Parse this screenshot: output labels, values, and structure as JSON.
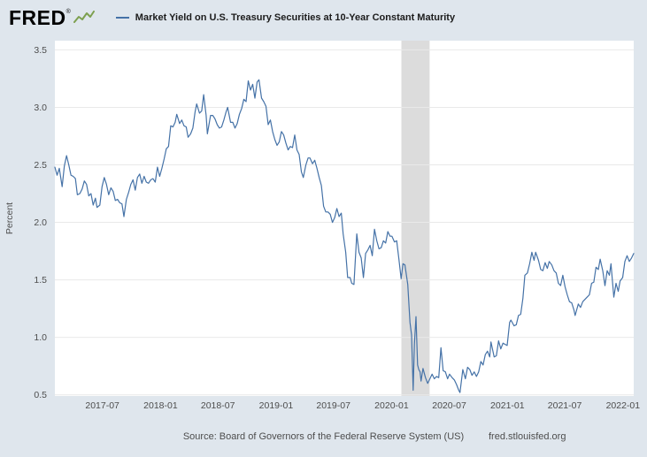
{
  "header": {
    "logo_text": "FRED",
    "logo_registered": "®",
    "legend": {
      "series_label": "Market Yield on U.S. Treasury Securities at 10-Year Constant Maturity"
    }
  },
  "footer": {
    "source_text": "Source: Board of Governors of the Federal Reserve System (US)",
    "site_text": "fred.stlouisfed.org"
  },
  "chart_data": {
    "type": "line",
    "title": "Market Yield on U.S. Treasury Securities at 10-Year Constant Maturity",
    "xlabel": "",
    "ylabel": "Percent",
    "ylim": [
      0.49,
      3.58
    ],
    "yticks": [
      0.5,
      1.0,
      1.5,
      2.0,
      2.5,
      3.0,
      3.5
    ],
    "ytick_labels": [
      "0.5",
      "1.0",
      "1.5",
      "2.0",
      "2.5",
      "3.0",
      "3.5"
    ],
    "xticks": [
      "2017-07",
      "2018-01",
      "2018-07",
      "2019-01",
      "2019-07",
      "2020-01",
      "2020-07",
      "2021-01",
      "2021-07",
      "2022-01"
    ],
    "x_start": "2017-02-01",
    "x_end": "2022-02-04",
    "grid": true,
    "legend_position": "top-left",
    "colors": {
      "line": "#4572a7",
      "recession_band": "#dcdcdc",
      "grid": "#e9e9e9",
      "plot_bg": "#ffffff",
      "page_bg": "#dfe6ed",
      "tick_text": "#4d4d4d"
    },
    "recession_bands": [
      {
        "start": "2020-02-01",
        "end": "2020-04-30"
      }
    ],
    "series": [
      {
        "name": "Market Yield on U.S. Treasury Securities at 10-Year Constant Maturity",
        "color": "#4572a7",
        "units": "Percent",
        "points": [
          [
            "2017-02-01",
            2.48
          ],
          [
            "2017-02-08",
            2.41
          ],
          [
            "2017-02-15",
            2.47
          ],
          [
            "2017-02-24",
            2.31
          ],
          [
            "2017-03-03",
            2.49
          ],
          [
            "2017-03-10",
            2.58
          ],
          [
            "2017-03-17",
            2.5
          ],
          [
            "2017-03-24",
            2.41
          ],
          [
            "2017-03-31",
            2.4
          ],
          [
            "2017-04-07",
            2.38
          ],
          [
            "2017-04-13",
            2.24
          ],
          [
            "2017-04-21",
            2.25
          ],
          [
            "2017-04-28",
            2.29
          ],
          [
            "2017-05-05",
            2.36
          ],
          [
            "2017-05-12",
            2.33
          ],
          [
            "2017-05-19",
            2.23
          ],
          [
            "2017-05-26",
            2.25
          ],
          [
            "2017-06-02",
            2.15
          ],
          [
            "2017-06-09",
            2.21
          ],
          [
            "2017-06-14",
            2.13
          ],
          [
            "2017-06-23",
            2.15
          ],
          [
            "2017-06-30",
            2.31
          ],
          [
            "2017-07-07",
            2.39
          ],
          [
            "2017-07-14",
            2.33
          ],
          [
            "2017-07-21",
            2.24
          ],
          [
            "2017-07-28",
            2.3
          ],
          [
            "2017-08-04",
            2.27
          ],
          [
            "2017-08-11",
            2.19
          ],
          [
            "2017-08-18",
            2.2
          ],
          [
            "2017-08-25",
            2.17
          ],
          [
            "2017-09-01",
            2.16
          ],
          [
            "2017-09-07",
            2.05
          ],
          [
            "2017-09-15",
            2.2
          ],
          [
            "2017-09-22",
            2.26
          ],
          [
            "2017-09-29",
            2.33
          ],
          [
            "2017-10-06",
            2.37
          ],
          [
            "2017-10-13",
            2.28
          ],
          [
            "2017-10-20",
            2.39
          ],
          [
            "2017-10-27",
            2.42
          ],
          [
            "2017-11-03",
            2.34
          ],
          [
            "2017-11-10",
            2.4
          ],
          [
            "2017-11-17",
            2.35
          ],
          [
            "2017-11-24",
            2.34
          ],
          [
            "2017-12-01",
            2.37
          ],
          [
            "2017-12-08",
            2.38
          ],
          [
            "2017-12-15",
            2.35
          ],
          [
            "2017-12-22",
            2.48
          ],
          [
            "2017-12-29",
            2.4
          ],
          [
            "2018-01-05",
            2.47
          ],
          [
            "2018-01-12",
            2.55
          ],
          [
            "2018-01-19",
            2.64
          ],
          [
            "2018-01-26",
            2.66
          ],
          [
            "2018-02-02",
            2.84
          ],
          [
            "2018-02-09",
            2.83
          ],
          [
            "2018-02-16",
            2.87
          ],
          [
            "2018-02-21",
            2.94
          ],
          [
            "2018-03-02",
            2.86
          ],
          [
            "2018-03-09",
            2.89
          ],
          [
            "2018-03-16",
            2.84
          ],
          [
            "2018-03-23",
            2.83
          ],
          [
            "2018-03-29",
            2.74
          ],
          [
            "2018-04-06",
            2.77
          ],
          [
            "2018-04-13",
            2.82
          ],
          [
            "2018-04-20",
            2.96
          ],
          [
            "2018-04-25",
            3.03
          ],
          [
            "2018-05-04",
            2.95
          ],
          [
            "2018-05-11",
            2.97
          ],
          [
            "2018-05-17",
            3.11
          ],
          [
            "2018-05-25",
            2.93
          ],
          [
            "2018-05-29",
            2.77
          ],
          [
            "2018-06-08",
            2.93
          ],
          [
            "2018-06-15",
            2.93
          ],
          [
            "2018-06-22",
            2.9
          ],
          [
            "2018-06-29",
            2.85
          ],
          [
            "2018-07-06",
            2.82
          ],
          [
            "2018-07-13",
            2.83
          ],
          [
            "2018-07-20",
            2.89
          ],
          [
            "2018-07-27",
            2.96
          ],
          [
            "2018-08-01",
            3.0
          ],
          [
            "2018-08-10",
            2.87
          ],
          [
            "2018-08-17",
            2.87
          ],
          [
            "2018-08-24",
            2.82
          ],
          [
            "2018-08-31",
            2.86
          ],
          [
            "2018-09-07",
            2.94
          ],
          [
            "2018-09-14",
            2.99
          ],
          [
            "2018-09-21",
            3.07
          ],
          [
            "2018-09-28",
            3.05
          ],
          [
            "2018-10-05",
            3.23
          ],
          [
            "2018-10-12",
            3.15
          ],
          [
            "2018-10-19",
            3.2
          ],
          [
            "2018-10-26",
            3.08
          ],
          [
            "2018-11-02",
            3.22
          ],
          [
            "2018-11-08",
            3.24
          ],
          [
            "2018-11-16",
            3.08
          ],
          [
            "2018-11-23",
            3.05
          ],
          [
            "2018-11-30",
            3.01
          ],
          [
            "2018-12-07",
            2.85
          ],
          [
            "2018-12-14",
            2.89
          ],
          [
            "2018-12-21",
            2.79
          ],
          [
            "2018-12-28",
            2.72
          ],
          [
            "2019-01-04",
            2.67
          ],
          [
            "2019-01-11",
            2.7
          ],
          [
            "2019-01-18",
            2.79
          ],
          [
            "2019-01-25",
            2.76
          ],
          [
            "2019-02-01",
            2.69
          ],
          [
            "2019-02-08",
            2.63
          ],
          [
            "2019-02-15",
            2.66
          ],
          [
            "2019-02-22",
            2.65
          ],
          [
            "2019-03-01",
            2.76
          ],
          [
            "2019-03-08",
            2.63
          ],
          [
            "2019-03-15",
            2.59
          ],
          [
            "2019-03-22",
            2.44
          ],
          [
            "2019-03-28",
            2.39
          ],
          [
            "2019-04-05",
            2.5
          ],
          [
            "2019-04-12",
            2.56
          ],
          [
            "2019-04-18",
            2.56
          ],
          [
            "2019-04-26",
            2.51
          ],
          [
            "2019-05-03",
            2.54
          ],
          [
            "2019-05-10",
            2.47
          ],
          [
            "2019-05-17",
            2.39
          ],
          [
            "2019-05-24",
            2.32
          ],
          [
            "2019-05-31",
            2.14
          ],
          [
            "2019-06-07",
            2.09
          ],
          [
            "2019-06-14",
            2.09
          ],
          [
            "2019-06-21",
            2.07
          ],
          [
            "2019-06-28",
            2.0
          ],
          [
            "2019-07-05",
            2.04
          ],
          [
            "2019-07-12",
            2.12
          ],
          [
            "2019-07-19",
            2.05
          ],
          [
            "2019-07-26",
            2.08
          ],
          [
            "2019-08-01",
            1.9
          ],
          [
            "2019-08-09",
            1.74
          ],
          [
            "2019-08-15",
            1.52
          ],
          [
            "2019-08-23",
            1.52
          ],
          [
            "2019-08-28",
            1.47
          ],
          [
            "2019-09-04",
            1.46
          ],
          [
            "2019-09-13",
            1.9
          ],
          [
            "2019-09-20",
            1.74
          ],
          [
            "2019-09-27",
            1.69
          ],
          [
            "2019-10-04",
            1.52
          ],
          [
            "2019-10-11",
            1.73
          ],
          [
            "2019-10-18",
            1.76
          ],
          [
            "2019-10-25",
            1.8
          ],
          [
            "2019-11-01",
            1.71
          ],
          [
            "2019-11-08",
            1.94
          ],
          [
            "2019-11-15",
            1.84
          ],
          [
            "2019-11-22",
            1.77
          ],
          [
            "2019-11-29",
            1.78
          ],
          [
            "2019-12-06",
            1.84
          ],
          [
            "2019-12-13",
            1.82
          ],
          [
            "2019-12-20",
            1.92
          ],
          [
            "2019-12-27",
            1.88
          ],
          [
            "2020-01-02",
            1.88
          ],
          [
            "2020-01-10",
            1.83
          ],
          [
            "2020-01-17",
            1.84
          ],
          [
            "2020-01-24",
            1.68
          ],
          [
            "2020-01-31",
            1.51
          ],
          [
            "2020-02-06",
            1.64
          ],
          [
            "2020-02-12",
            1.63
          ],
          [
            "2020-02-21",
            1.46
          ],
          [
            "2020-02-28",
            1.13
          ],
          [
            "2020-03-04",
            1.02
          ],
          [
            "2020-03-09",
            0.54
          ],
          [
            "2020-03-13",
            0.94
          ],
          [
            "2020-03-18",
            1.18
          ],
          [
            "2020-03-23",
            0.76
          ],
          [
            "2020-03-27",
            0.72
          ],
          [
            "2020-03-31",
            0.7
          ],
          [
            "2020-04-03",
            0.62
          ],
          [
            "2020-04-09",
            0.73
          ],
          [
            "2020-04-17",
            0.65
          ],
          [
            "2020-04-24",
            0.6
          ],
          [
            "2020-05-01",
            0.64
          ],
          [
            "2020-05-08",
            0.68
          ],
          [
            "2020-05-15",
            0.64
          ],
          [
            "2020-05-22",
            0.66
          ],
          [
            "2020-05-29",
            0.65
          ],
          [
            "2020-06-05",
            0.91
          ],
          [
            "2020-06-12",
            0.71
          ],
          [
            "2020-06-19",
            0.7
          ],
          [
            "2020-06-26",
            0.64
          ],
          [
            "2020-07-02",
            0.68
          ],
          [
            "2020-07-10",
            0.65
          ],
          [
            "2020-07-17",
            0.63
          ],
          [
            "2020-07-24",
            0.59
          ],
          [
            "2020-07-31",
            0.54
          ],
          [
            "2020-08-04",
            0.52
          ],
          [
            "2020-08-13",
            0.72
          ],
          [
            "2020-08-21",
            0.64
          ],
          [
            "2020-08-28",
            0.74
          ],
          [
            "2020-09-04",
            0.72
          ],
          [
            "2020-09-11",
            0.67
          ],
          [
            "2020-09-18",
            0.7
          ],
          [
            "2020-09-25",
            0.66
          ],
          [
            "2020-10-02",
            0.7
          ],
          [
            "2020-10-09",
            0.79
          ],
          [
            "2020-10-16",
            0.76
          ],
          [
            "2020-10-23",
            0.85
          ],
          [
            "2020-10-30",
            0.88
          ],
          [
            "2020-11-06",
            0.83
          ],
          [
            "2020-11-10",
            0.96
          ],
          [
            "2020-11-20",
            0.83
          ],
          [
            "2020-11-27",
            0.84
          ],
          [
            "2020-12-04",
            0.97
          ],
          [
            "2020-12-11",
            0.9
          ],
          [
            "2020-12-18",
            0.95
          ],
          [
            "2020-12-24",
            0.94
          ],
          [
            "2020-12-31",
            0.93
          ],
          [
            "2021-01-08",
            1.13
          ],
          [
            "2021-01-12",
            1.15
          ],
          [
            "2021-01-22",
            1.1
          ],
          [
            "2021-01-29",
            1.11
          ],
          [
            "2021-02-05",
            1.19
          ],
          [
            "2021-02-12",
            1.2
          ],
          [
            "2021-02-19",
            1.34
          ],
          [
            "2021-02-25",
            1.54
          ],
          [
            "2021-03-05",
            1.56
          ],
          [
            "2021-03-12",
            1.64
          ],
          [
            "2021-03-19",
            1.74
          ],
          [
            "2021-03-26",
            1.67
          ],
          [
            "2021-03-31",
            1.74
          ],
          [
            "2021-04-09",
            1.67
          ],
          [
            "2021-04-16",
            1.59
          ],
          [
            "2021-04-23",
            1.58
          ],
          [
            "2021-04-30",
            1.65
          ],
          [
            "2021-05-07",
            1.6
          ],
          [
            "2021-05-13",
            1.66
          ],
          [
            "2021-05-21",
            1.63
          ],
          [
            "2021-05-28",
            1.58
          ],
          [
            "2021-06-04",
            1.56
          ],
          [
            "2021-06-11",
            1.47
          ],
          [
            "2021-06-18",
            1.45
          ],
          [
            "2021-06-25",
            1.54
          ],
          [
            "2021-07-02",
            1.44
          ],
          [
            "2021-07-09",
            1.37
          ],
          [
            "2021-07-16",
            1.31
          ],
          [
            "2021-07-23",
            1.3
          ],
          [
            "2021-07-30",
            1.24
          ],
          [
            "2021-08-03",
            1.19
          ],
          [
            "2021-08-13",
            1.29
          ],
          [
            "2021-08-20",
            1.26
          ],
          [
            "2021-08-27",
            1.31
          ],
          [
            "2021-09-03",
            1.33
          ],
          [
            "2021-09-10",
            1.35
          ],
          [
            "2021-09-17",
            1.37
          ],
          [
            "2021-09-24",
            1.47
          ],
          [
            "2021-10-01",
            1.48
          ],
          [
            "2021-10-08",
            1.61
          ],
          [
            "2021-10-15",
            1.59
          ],
          [
            "2021-10-21",
            1.68
          ],
          [
            "2021-10-29",
            1.58
          ],
          [
            "2021-11-05",
            1.45
          ],
          [
            "2021-11-12",
            1.58
          ],
          [
            "2021-11-19",
            1.54
          ],
          [
            "2021-11-24",
            1.64
          ],
          [
            "2021-12-03",
            1.35
          ],
          [
            "2021-12-10",
            1.47
          ],
          [
            "2021-12-17",
            1.4
          ],
          [
            "2021-12-23",
            1.49
          ],
          [
            "2021-12-31",
            1.52
          ],
          [
            "2022-01-07",
            1.66
          ],
          [
            "2022-01-14",
            1.71
          ],
          [
            "2022-01-21",
            1.66
          ],
          [
            "2022-01-28",
            1.69
          ],
          [
            "2022-02-04",
            1.73
          ]
        ]
      }
    ]
  }
}
